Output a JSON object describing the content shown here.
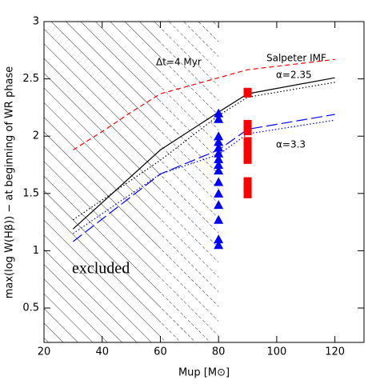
{
  "chart_data": {
    "type": "line",
    "x_label": "Mup [M⊙]",
    "y_label": "max(log W(Hβ))  − at beginning of WR phase",
    "xlim": [
      20,
      130
    ],
    "ylim": [
      0.2,
      3
    ],
    "xticks": [
      20,
      40,
      60,
      80,
      100,
      120
    ],
    "yticks": [
      0.5,
      1,
      1.5,
      2,
      2.5,
      3
    ],
    "regions": [
      {
        "x": [
          20,
          60
        ],
        "style": "solid"
      },
      {
        "x": [
          60,
          80
        ],
        "style": "dashed"
      }
    ],
    "annotations": [
      "Δt=4 Myr",
      "Salpeter IMF",
      "α=2.35",
      "α=3.3",
      "excluded"
    ],
    "series": [
      {
        "color": "#ff0000",
        "style": "dashed",
        "x": [
          30,
          40,
          50,
          60,
          90,
          120
        ],
        "values": [
          1.88,
          2.04,
          2.21,
          2.37,
          2.58,
          2.67
        ]
      },
      {
        "color": "#000000",
        "style": "solid",
        "x": [
          30,
          60,
          80,
          90,
          120
        ],
        "values": [
          1.19,
          1.88,
          2.21,
          2.37,
          2.51
        ]
      },
      {
        "color": "#000000",
        "style": "dotted",
        "x": [
          30,
          60,
          80,
          90,
          120
        ],
        "values": [
          1.27,
          1.79,
          2.18,
          2.34,
          2.47
        ]
      },
      {
        "color": "#0000ff",
        "style": "longdash",
        "x": [
          30,
          60,
          80,
          90,
          120
        ],
        "values": [
          1.08,
          1.67,
          1.88,
          2.06,
          2.19
        ]
      },
      {
        "color": "#0000ff",
        "style": "dotted",
        "x": [
          30,
          60,
          80,
          90,
          120
        ],
        "values": [
          1.15,
          1.67,
          1.84,
          2.02,
          2.14
        ]
      },
      {
        "color": "#0000ff",
        "marker": "triangle",
        "x": [
          80,
          80,
          80,
          80,
          80,
          80,
          80,
          80,
          80,
          80,
          80,
          80,
          80,
          80,
          80
        ],
        "values": [
          2.2,
          2.15,
          2.0,
          1.95,
          1.9,
          1.85,
          1.8,
          1.75,
          1.7,
          1.6,
          1.5,
          1.4,
          1.27,
          1.1,
          1.05
        ]
      },
      {
        "color": "#ff0000",
        "marker": "square",
        "x": [
          90,
          90,
          90,
          90,
          90,
          90,
          90,
          90,
          90,
          90
        ],
        "values": [
          2.38,
          2.1,
          2.05,
          1.95,
          1.9,
          1.85,
          1.8,
          1.6,
          1.55,
          1.5
        ]
      }
    ]
  }
}
